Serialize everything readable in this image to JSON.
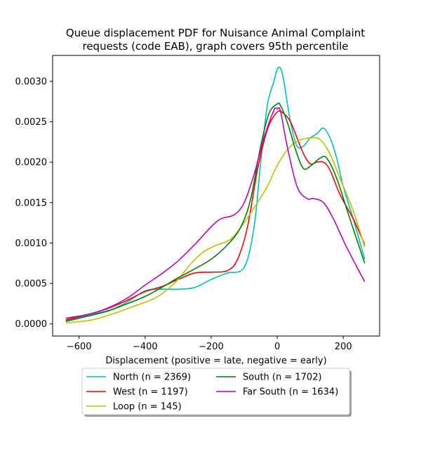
{
  "chart_data": {
    "type": "line",
    "title": "Queue displacement PDF for Nuisance Animal Complaint requests (code EAB), graph covers 95th percentile",
    "title_lines": [
      "Queue displacement PDF for Nuisance Animal Complaint",
      "requests (code EAB), graph covers 95th percentile"
    ],
    "xlabel": "Displacement (positive = late, negative = early)",
    "ylabel": "",
    "xlim": [
      -680,
      310
    ],
    "ylim": [
      -0.00015,
      0.00332
    ],
    "xticks": [
      -600,
      -400,
      -200,
      0,
      200
    ],
    "xtick_labels": [
      "−600",
      "−400",
      "−200",
      "0",
      "200"
    ],
    "yticks": [
      0.0,
      0.0005,
      0.001,
      0.0015,
      0.002,
      0.0025,
      0.003
    ],
    "ytick_labels": [
      "0.0000",
      "0.0005",
      "0.0010",
      "0.0015",
      "0.0020",
      "0.0025",
      "0.0030"
    ],
    "grid": false,
    "legend_position": "below",
    "series": [
      {
        "name": "North (n = 2369)",
        "color": "#00bfbf",
        "x": [
          -640,
          -560,
          -500,
          -450,
          -400,
          -350,
          -300,
          -250,
          -200,
          -150,
          -100,
          -70,
          -50,
          -30,
          -10,
          0,
          10,
          20,
          40,
          60,
          80,
          100,
          120,
          140,
          160,
          180,
          200,
          230,
          265
        ],
        "y": [
          4e-05,
          0.00012,
          0.00018,
          0.00028,
          0.00041,
          0.00043,
          0.00043,
          0.00045,
          0.00055,
          0.00063,
          0.0007,
          0.0012,
          0.002,
          0.0027,
          0.003,
          0.00315,
          0.00316,
          0.003,
          0.0025,
          0.0022,
          0.0022,
          0.0023,
          0.00235,
          0.00242,
          0.0023,
          0.00205,
          0.0017,
          0.0013,
          0.0008
        ]
      },
      {
        "name": "West (n = 1197)",
        "color": "#ff0000",
        "x": [
          -640,
          -580,
          -520,
          -460,
          -400,
          -350,
          -300,
          -250,
          -200,
          -150,
          -120,
          -90,
          -60,
          -30,
          0,
          20,
          40,
          60,
          80,
          100,
          120,
          140,
          160,
          190,
          230,
          265
        ],
        "y": [
          5e-05,
          0.00011,
          0.00018,
          0.00028,
          0.0004,
          0.00046,
          0.00055,
          0.00063,
          0.00064,
          0.00066,
          0.0008,
          0.0012,
          0.0019,
          0.0024,
          0.00262,
          0.0026,
          0.0025,
          0.0023,
          0.0021,
          0.00198,
          0.002,
          0.002,
          0.0019,
          0.0016,
          0.0013,
          0.00098
        ]
      },
      {
        "name": "Loop (n = 145)",
        "color": "#bfbf00",
        "x": [
          -640,
          -560,
          -500,
          -440,
          -380,
          -340,
          -300,
          -260,
          -220,
          -180,
          -140,
          -100,
          -60,
          -30,
          0,
          30,
          60,
          100,
          130,
          160,
          190,
          230,
          265
        ],
        "y": [
          1e-05,
          5e-05,
          0.00012,
          0.00021,
          0.0003,
          0.0004,
          0.00055,
          0.00075,
          0.0009,
          0.00098,
          0.00105,
          0.00125,
          0.0015,
          0.0017,
          0.00196,
          0.00215,
          0.00226,
          0.0023,
          0.00228,
          0.0021,
          0.0018,
          0.0014,
          0.00095
        ]
      },
      {
        "name": "South (n = 1702)",
        "color": "#008000",
        "x": [
          -640,
          -580,
          -520,
          -460,
          -400,
          -350,
          -300,
          -250,
          -200,
          -150,
          -110,
          -80,
          -50,
          -25,
          0,
          10,
          30,
          60,
          80,
          100,
          130,
          150,
          180,
          220,
          265
        ],
        "y": [
          3e-05,
          9e-05,
          0.00015,
          0.00024,
          0.00034,
          0.00045,
          0.00057,
          0.00068,
          0.0008,
          0.00098,
          0.0012,
          0.00155,
          0.0022,
          0.0026,
          0.00272,
          0.0027,
          0.0025,
          0.0021,
          0.00192,
          0.00195,
          0.00205,
          0.00205,
          0.0018,
          0.0013,
          0.00075
        ]
      },
      {
        "name": "Far South (n = 1634)",
        "color": "#bf00bf",
        "x": [
          -640,
          -560,
          -500,
          -450,
          -400,
          -350,
          -300,
          -250,
          -200,
          -170,
          -130,
          -100,
          -70,
          -40,
          -10,
          0,
          10,
          30,
          60,
          90,
          110,
          140,
          170,
          210,
          265
        ],
        "y": [
          7e-05,
          0.00013,
          0.00022,
          0.00033,
          0.00048,
          0.00062,
          0.00078,
          0.00098,
          0.0012,
          0.0013,
          0.00135,
          0.0015,
          0.00185,
          0.0023,
          0.00264,
          0.00266,
          0.00263,
          0.0022,
          0.0017,
          0.00155,
          0.00155,
          0.0015,
          0.0013,
          0.00095,
          0.00052
        ]
      }
    ]
  }
}
